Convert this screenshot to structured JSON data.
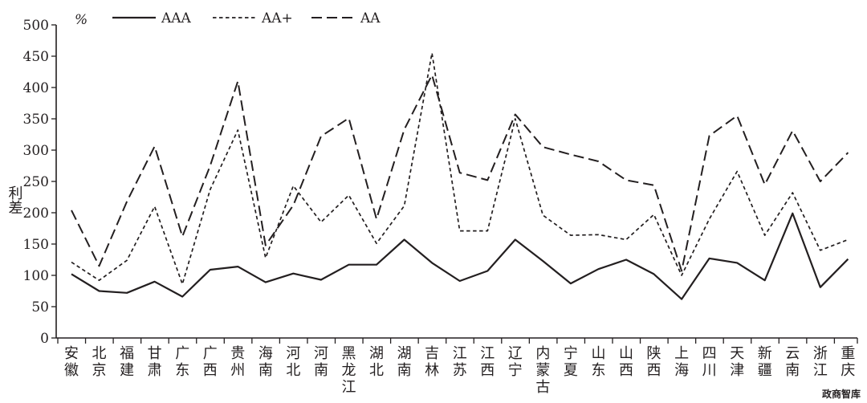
{
  "watermark": "政商智库",
  "chart_data": {
    "type": "line",
    "unit_label": "%",
    "ylabel": "利差",
    "ylim": [
      0,
      500
    ],
    "yticks": [
      0,
      50,
      100,
      150,
      200,
      250,
      300,
      350,
      400,
      450,
      500
    ],
    "grid": false,
    "legend_position": "top",
    "categories": [
      "安徽",
      "北京",
      "福建",
      "甘肃",
      "广东",
      "广西",
      "贵州",
      "海南",
      "河北",
      "河南",
      "黑龙江",
      "湖北",
      "湖南",
      "吉林",
      "江苏",
      "江西",
      "辽宁",
      "内蒙古",
      "宁夏",
      "山东",
      "山西",
      "陕西",
      "上海",
      "四川",
      "天津",
      "新疆",
      "云南",
      "浙江",
      "重庆"
    ],
    "series": [
      {
        "name": "AAA",
        "dash": "solid",
        "values": [
          102,
          75,
          72,
          90,
          66,
          109,
          114,
          89,
          103,
          93,
          117,
          117,
          157,
          120,
          91,
          107,
          157,
          123,
          87,
          110,
          125,
          102,
          62,
          127,
          120,
          92,
          199,
          81,
          126
        ]
      },
      {
        "name": "AA+",
        "dash": "short",
        "values": [
          121,
          92,
          124,
          210,
          86,
          237,
          332,
          128,
          243,
          185,
          228,
          151,
          211,
          455,
          171,
          171,
          350,
          196,
          164,
          165,
          157,
          197,
          100,
          190,
          266,
          164,
          232,
          140,
          157
        ]
      },
      {
        "name": "AA",
        "dash": "long",
        "values": [
          204,
          115,
          218,
          306,
          162,
          275,
          410,
          148,
          212,
          322,
          351,
          190,
          333,
          420,
          264,
          252,
          357,
          305,
          293,
          282,
          252,
          244,
          107,
          323,
          355,
          245,
          331,
          250,
          296
        ]
      }
    ]
  }
}
